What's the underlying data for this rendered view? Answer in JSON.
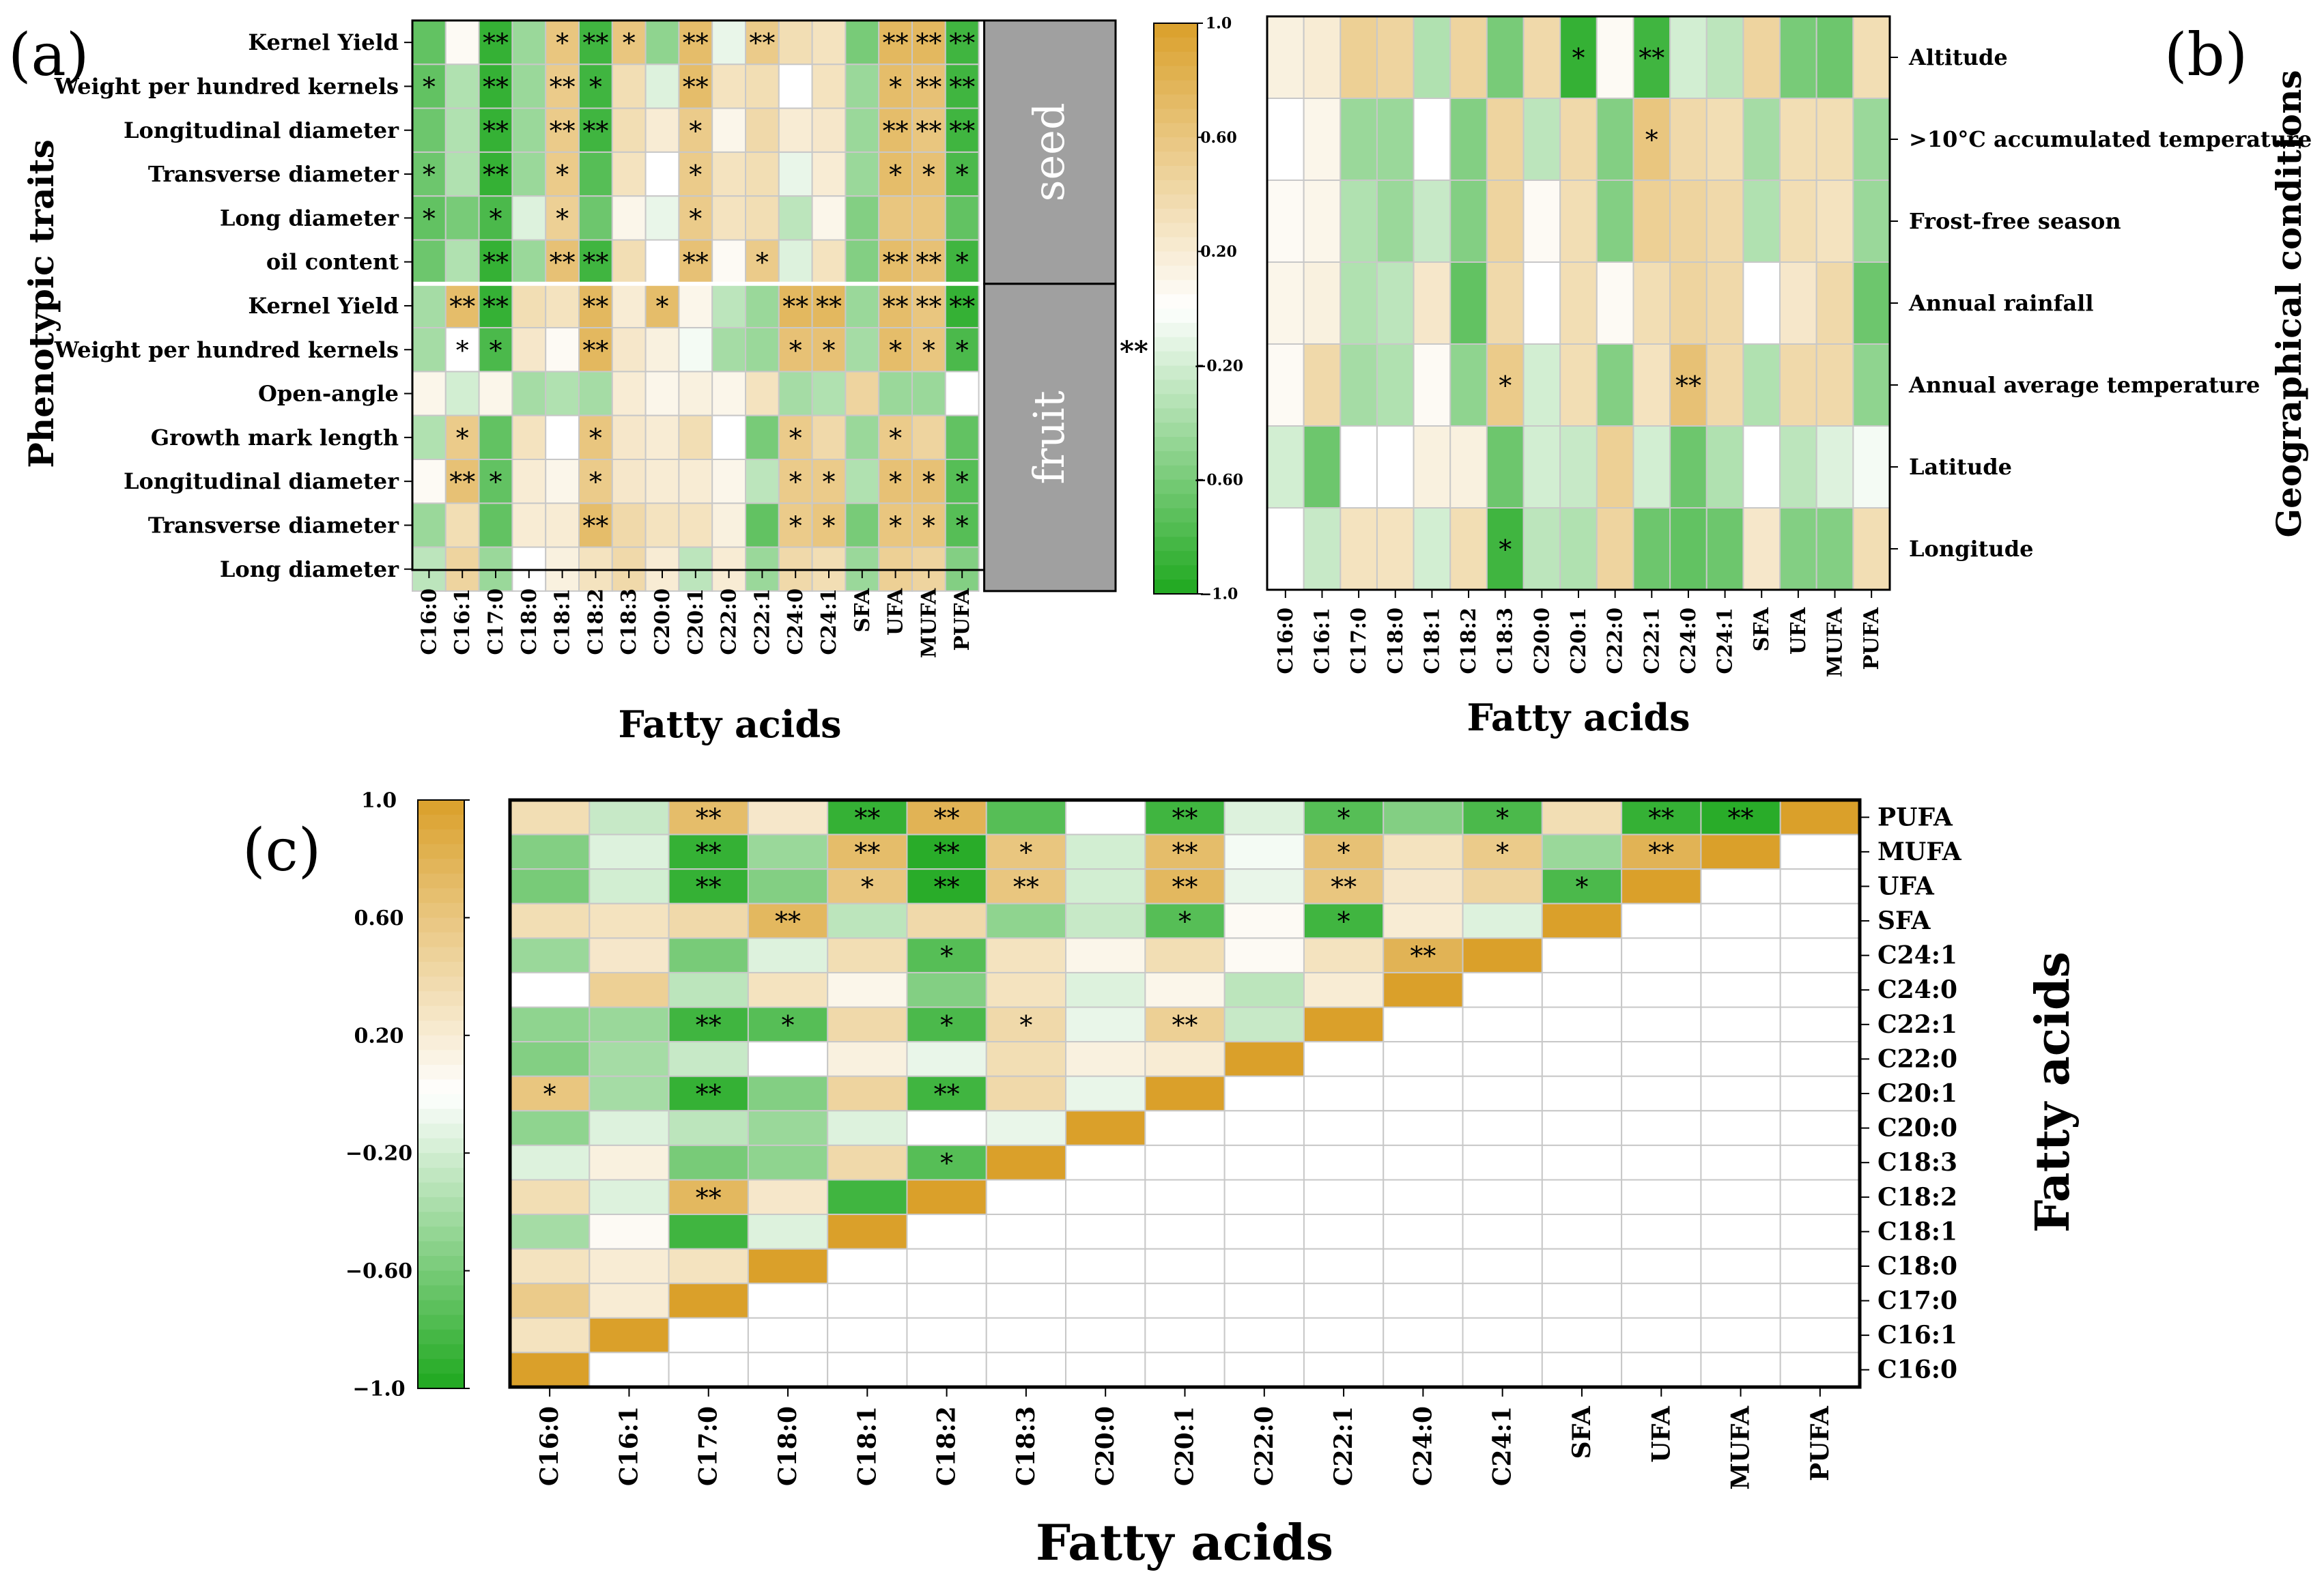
{
  "panels": {
    "a": {
      "label": "(a)"
    },
    "b": {
      "label": "(b)"
    },
    "c": {
      "label": "(c)"
    }
  },
  "colorbar": {
    "ticks": [
      "1.0",
      "0.60",
      "0.20",
      "−0.20",
      "−0.60",
      "−1.0"
    ],
    "tick_values": [
      1.0,
      0.6,
      0.2,
      -0.2,
      -0.6,
      -1.0
    ]
  },
  "significance_legend": "**",
  "colors": {
    "positive": "#daa02a",
    "neutral": "#ffffff",
    "negative": "#1ea81e",
    "cell_border": "#c8c8c8",
    "group_tag": "#a0a0a0"
  },
  "chart_data": [
    {
      "panel": "a",
      "type": "heatmap",
      "xlabel": "Fatty acids",
      "ylabel": "Phenotypic traits",
      "columns": [
        "C16:0",
        "C16:1",
        "C17:0",
        "C18:0",
        "C18:1",
        "C18:2",
        "C18:3",
        "C20:0",
        "C20:1",
        "C22:0",
        "C22:1",
        "C24:0",
        "C24:1",
        "SFA",
        "UFA",
        "MUFA",
        "PUFA"
      ],
      "groups": [
        "seed",
        "fruit"
      ],
      "rows": [
        "Kernel Yield",
        "Weight per hundred kernels",
        "Longitudinal diameter",
        "Transverse diameter",
        "Long diameter",
        "oil content",
        "Kernel Yield",
        "Weight per hundred kernels",
        "Open-angle",
        "Growth mark length",
        "Longitudinal diameter",
        "Transverse diameter",
        "Long diameter"
      ],
      "values": [
        [
          -0.7,
          0.05,
          -0.9,
          -0.45,
          0.6,
          -0.85,
          0.6,
          -0.5,
          0.7,
          -0.1,
          0.55,
          0.35,
          0.3,
          -0.6,
          0.75,
          0.75,
          -0.85
        ],
        [
          -0.7,
          -0.35,
          -0.9,
          -0.45,
          0.55,
          -0.85,
          0.35,
          -0.15,
          0.7,
          0.3,
          0.35,
          0.0,
          0.3,
          -0.45,
          0.7,
          0.65,
          -0.85
        ],
        [
          -0.65,
          -0.35,
          -0.9,
          -0.45,
          0.55,
          -0.85,
          0.35,
          0.2,
          0.55,
          0.1,
          0.4,
          0.2,
          0.25,
          -0.45,
          0.7,
          0.6,
          -0.85
        ],
        [
          -0.65,
          -0.35,
          -0.9,
          -0.45,
          0.55,
          -0.75,
          0.3,
          0.0,
          0.55,
          0.3,
          0.35,
          -0.1,
          0.2,
          -0.45,
          0.7,
          0.65,
          -0.8
        ],
        [
          -0.7,
          -0.6,
          -0.8,
          -0.15,
          0.5,
          -0.65,
          0.1,
          -0.1,
          0.55,
          0.3,
          0.35,
          -0.3,
          0.1,
          -0.55,
          0.6,
          0.6,
          -0.7
        ],
        [
          -0.65,
          -0.35,
          -0.9,
          -0.45,
          0.65,
          -0.85,
          0.35,
          0.0,
          0.65,
          0.05,
          0.55,
          -0.15,
          0.3,
          -0.55,
          0.7,
          0.65,
          -0.85
        ],
        [
          -0.4,
          0.7,
          -0.9,
          0.35,
          0.3,
          0.75,
          0.2,
          0.7,
          0.1,
          -0.3,
          -0.45,
          0.75,
          0.75,
          -0.45,
          0.7,
          0.6,
          -0.9
        ],
        [
          -0.4,
          0.0,
          -0.8,
          0.25,
          0.05,
          0.75,
          0.25,
          0.15,
          -0.05,
          -0.4,
          -0.45,
          0.65,
          0.65,
          -0.4,
          0.7,
          0.6,
          -0.8
        ],
        [
          0.1,
          -0.2,
          0.1,
          -0.4,
          -0.35,
          -0.4,
          0.2,
          0.1,
          0.15,
          0.1,
          0.3,
          -0.4,
          -0.35,
          0.45,
          -0.45,
          -0.45,
          0.0
        ],
        [
          -0.35,
          0.55,
          -0.7,
          0.3,
          0.0,
          0.6,
          0.25,
          0.2,
          0.35,
          0.0,
          -0.6,
          0.55,
          0.4,
          -0.45,
          0.55,
          0.45,
          -0.7
        ],
        [
          0.05,
          0.65,
          -0.7,
          0.2,
          0.1,
          0.55,
          0.25,
          0.2,
          0.2,
          0.1,
          -0.3,
          0.55,
          0.55,
          -0.35,
          0.65,
          0.65,
          -0.75
        ],
        [
          -0.45,
          0.35,
          -0.7,
          0.2,
          0.2,
          0.7,
          0.4,
          0.3,
          0.3,
          0.15,
          -0.7,
          0.55,
          0.6,
          -0.6,
          0.6,
          0.6,
          -0.75
        ],
        [
          -0.3,
          0.45,
          -0.45,
          0.0,
          0.15,
          0.3,
          0.4,
          0.2,
          -0.3,
          0.2,
          -0.45,
          0.4,
          0.35,
          -0.45,
          0.5,
          0.45,
          -0.55
        ]
      ],
      "signif": [
        [
          "",
          "",
          "**",
          "",
          "*",
          "**",
          "*",
          "",
          "**",
          "",
          "**",
          "",
          "",
          "",
          "**",
          "**",
          "**"
        ],
        [
          "*",
          "",
          "**",
          "",
          "**",
          "*",
          "",
          "",
          "**",
          "",
          "",
          "",
          "",
          "",
          "*",
          "**",
          "**"
        ],
        [
          "",
          "",
          "**",
          "",
          "**",
          "**",
          "",
          "",
          "*",
          "",
          "",
          "",
          "",
          "",
          "**",
          "**",
          "**"
        ],
        [
          "*",
          "",
          "**",
          "",
          "*",
          "",
          "",
          "",
          "*",
          "",
          "",
          "",
          "",
          "",
          "*",
          "*",
          "*"
        ],
        [
          "*",
          "",
          "*",
          "",
          "*",
          "",
          "",
          "",
          "*",
          "",
          "",
          "",
          "",
          "",
          "",
          "",
          ""
        ],
        [
          "",
          "",
          "**",
          "",
          "**",
          "**",
          "",
          "",
          "**",
          "",
          "*",
          "",
          "",
          "",
          "**",
          "**",
          "*"
        ],
        [
          "",
          "**",
          "**",
          "",
          "",
          "**",
          "",
          "*",
          "",
          "",
          "",
          "**",
          "**",
          "",
          "**",
          "**",
          "**"
        ],
        [
          "",
          "*",
          "*",
          "",
          "",
          "**",
          "",
          "",
          "",
          "",
          "",
          "*",
          "*",
          "",
          "*",
          "*",
          "*"
        ],
        [
          "",
          "",
          "",
          "",
          "",
          "",
          "",
          "",
          "",
          "",
          "",
          "",
          "",
          "",
          "",
          "",
          ""
        ],
        [
          "",
          "*",
          "",
          "",
          "",
          "*",
          "",
          "",
          "",
          "",
          "",
          "*",
          "",
          "",
          "*",
          "",
          ""
        ],
        [
          "",
          "**",
          "*",
          "",
          "",
          "*",
          "",
          "",
          "",
          "",
          "",
          "*",
          "*",
          "",
          "*",
          "*",
          "*"
        ],
        [
          "",
          "",
          "",
          "",
          "",
          "**",
          "",
          "",
          "",
          "",
          "",
          "*",
          "*",
          "",
          "*",
          "*",
          "*"
        ],
        [
          "",
          "",
          "",
          "",
          "",
          "",
          "",
          "",
          "",
          "",
          "",
          "",
          "",
          "",
          "",
          "",
          ""
        ]
      ],
      "vmin": -1.0,
      "vmax": 1.0
    },
    {
      "panel": "b",
      "type": "heatmap",
      "xlabel": "Fatty acids",
      "ylabel": "Geographical conditions",
      "columns": [
        "C16:0",
        "C16:1",
        "C17:0",
        "C18:0",
        "C18:1",
        "C18:2",
        "C18:3",
        "C20:0",
        "C20:1",
        "C22:0",
        "C22:1",
        "C24:0",
        "C24:1",
        "SFA",
        "UFA",
        "MUFA",
        "PUFA"
      ],
      "rows": [
        "Altitude",
        ">10°C accumulated temperature",
        "Frost-free season",
        "Annual rainfall",
        "Annual average temperature",
        "Latitude",
        "Longitude"
      ],
      "values": [
        [
          0.15,
          0.2,
          0.5,
          0.45,
          -0.35,
          0.45,
          -0.6,
          0.4,
          -0.9,
          0.05,
          -0.85,
          -0.2,
          -0.3,
          0.45,
          -0.6,
          -0.65,
          0.35
        ],
        [
          0.0,
          0.1,
          -0.45,
          -0.45,
          0.0,
          -0.55,
          0.45,
          -0.3,
          0.4,
          -0.55,
          0.6,
          0.4,
          0.35,
          -0.4,
          0.35,
          0.35,
          -0.45
        ],
        [
          0.05,
          0.1,
          -0.35,
          -0.45,
          -0.25,
          -0.55,
          0.45,
          0.05,
          0.35,
          -0.55,
          0.5,
          0.45,
          0.4,
          -0.35,
          0.35,
          0.3,
          -0.45
        ],
        [
          0.1,
          0.15,
          -0.35,
          -0.3,
          0.25,
          -0.7,
          0.4,
          0.0,
          0.35,
          0.05,
          0.35,
          0.45,
          0.4,
          0.0,
          0.25,
          0.4,
          -0.65
        ],
        [
          0.05,
          0.4,
          -0.4,
          -0.35,
          0.05,
          -0.5,
          0.55,
          -0.2,
          0.35,
          -0.55,
          0.3,
          0.65,
          0.4,
          -0.35,
          0.4,
          0.4,
          -0.5
        ],
        [
          -0.2,
          -0.65,
          0.0,
          0.0,
          0.15,
          0.15,
          -0.65,
          -0.2,
          -0.25,
          0.5,
          -0.2,
          -0.65,
          -0.35,
          0.0,
          -0.3,
          -0.15,
          -0.05
        ],
        [
          0.0,
          -0.25,
          0.3,
          0.3,
          -0.2,
          0.35,
          -0.85,
          -0.3,
          -0.35,
          0.45,
          -0.65,
          -0.7,
          -0.65,
          0.25,
          -0.55,
          -0.55,
          0.35
        ]
      ],
      "signif": [
        [
          "",
          "",
          "",
          "",
          "",
          "",
          "",
          "",
          "*",
          "",
          "**",
          "",
          "",
          "",
          "",
          "",
          ""
        ],
        [
          "",
          "",
          "",
          "",
          "",
          "",
          "",
          "",
          "",
          "",
          "*",
          "",
          "",
          "",
          "",
          "",
          ""
        ],
        [
          "",
          "",
          "",
          "",
          "",
          "",
          "",
          "",
          "",
          "",
          "",
          "",
          "",
          "",
          "",
          "",
          ""
        ],
        [
          "",
          "",
          "",
          "",
          "",
          "",
          "",
          "",
          "",
          "",
          "",
          "",
          "",
          "",
          "",
          "",
          ""
        ],
        [
          "",
          "",
          "",
          "",
          "",
          "",
          "*",
          "",
          "",
          "",
          "",
          "**",
          "",
          "",
          "",
          "",
          ""
        ],
        [
          "",
          "",
          "",
          "",
          "",
          "",
          "",
          "",
          "",
          "",
          "",
          "",
          "",
          "",
          "",
          "",
          ""
        ],
        [
          "",
          "",
          "",
          "",
          "",
          "",
          "*",
          "",
          "",
          "",
          "",
          "",
          "",
          "",
          "",
          "",
          ""
        ]
      ],
      "vmin": -1.0,
      "vmax": 1.0
    },
    {
      "panel": "c",
      "type": "heatmap",
      "xlabel": "Fatty acids",
      "ylabel": "Fatty acids",
      "columns": [
        "C16:0",
        "C16:1",
        "C17:0",
        "C18:0",
        "C18:1",
        "C18:2",
        "C18:3",
        "C20:0",
        "C20:1",
        "C22:0",
        "C22:1",
        "C24:0",
        "C24:1",
        "SFA",
        "UFA",
        "MUFA",
        "PUFA"
      ],
      "rows_top_to_bottom": [
        "PUFA",
        "MUFA",
        "UFA",
        "SFA",
        "C24:1",
        "C24:0",
        "C22:1",
        "C22:0",
        "C20:1",
        "C20:0",
        "C18:3",
        "C18:2",
        "C18:1",
        "C18:0",
        "C17:0",
        "C16:1",
        "C16:0"
      ],
      "lower_triangle_rows": {
        "C16:1": [
          0.3
        ],
        "C17:0": [
          0.55,
          0.2
        ],
        "C18:0": [
          0.3,
          0.2,
          0.3
        ],
        "C18:1": [
          -0.4,
          0.05,
          -0.85,
          -0.15
        ],
        "C18:2": [
          0.35,
          -0.15,
          0.75,
          0.25,
          -0.85
        ],
        "C18:3": [
          -0.15,
          0.15,
          -0.6,
          -0.5,
          0.4,
          -0.75
        ],
        "C20:0": [
          -0.5,
          -0.15,
          -0.3,
          -0.45,
          -0.15,
          0.0,
          -0.1
        ],
        "C20:1": [
          0.6,
          -0.4,
          -0.9,
          -0.55,
          0.45,
          -0.85,
          0.4,
          -0.1
        ],
        "C22:0": [
          -0.55,
          -0.4,
          -0.25,
          0.0,
          0.15,
          -0.1,
          0.35,
          0.15,
          0.2
        ],
        "C22:1": [
          -0.5,
          -0.45,
          -0.85,
          -0.75,
          0.4,
          -0.8,
          0.4,
          -0.1,
          0.5,
          -0.25
        ],
        "C24:0": [
          0.0,
          0.5,
          -0.3,
          0.3,
          0.1,
          -0.55,
          0.3,
          -0.15,
          0.1,
          -0.3,
          0.2
        ],
        "C24:1": [
          -0.45,
          0.25,
          -0.6,
          -0.15,
          0.35,
          -0.75,
          0.3,
          0.1,
          0.35,
          0.05,
          0.3,
          0.8
        ],
        "SFA": [
          0.35,
          0.3,
          0.4,
          0.75,
          -0.3,
          0.4,
          -0.5,
          -0.25,
          -0.75,
          0.05,
          -0.85,
          0.2,
          -0.15
        ],
        "UFA": [
          -0.6,
          -0.2,
          -0.9,
          -0.55,
          0.6,
          -0.95,
          0.6,
          -0.2,
          0.75,
          -0.1,
          0.6,
          0.25,
          0.45,
          -0.8
        ],
        "MUFA": [
          -0.55,
          -0.15,
          -0.9,
          -0.45,
          0.7,
          -0.95,
          0.6,
          -0.2,
          0.7,
          -0.05,
          0.65,
          0.3,
          0.55,
          -0.45,
          0.8
        ],
        "PUFA": [
          0.35,
          -0.25,
          0.7,
          0.25,
          -0.9,
          0.8,
          -0.75,
          0.0,
          -0.85,
          -0.15,
          -0.75,
          -0.55,
          -0.8,
          0.35,
          -0.9,
          -0.95
        ]
      },
      "diagonal": 1.0,
      "signif": {
        "C17:0": [
          "",
          "",
          "*"
        ],
        "C18:1": [
          "",
          "",
          "",
          "",
          "*"
        ],
        "C18:2": [
          "",
          "",
          "**",
          "",
          "",
          "",
          "*"
        ],
        "C18:3": [
          "",
          "",
          "",
          "",
          "",
          "*"
        ],
        "C20:1": [
          "*",
          "",
          "**",
          "",
          "",
          "**"
        ],
        "C22:1": [
          "",
          "",
          "**",
          "*",
          "",
          "*",
          "*",
          "",
          "**"
        ],
        "C24:1": [
          "",
          "",
          "",
          "",
          "",
          "*",
          "",
          "",
          "",
          "",
          "",
          "**"
        ],
        "SFA": [
          "",
          "",
          "",
          "**",
          "",
          "",
          "",
          "",
          "*",
          "",
          "*",
          "",
          "",
          "*"
        ],
        "UFA": [
          "",
          "",
          "**",
          "",
          "*",
          "**",
          "**",
          "",
          "**",
          "",
          "**",
          "",
          "",
          "*",
          "**"
        ],
        "MUFA": [
          "",
          "",
          "**",
          "",
          "**",
          "**",
          "*",
          "",
          "**",
          "",
          "*",
          "",
          "*",
          "",
          "**",
          "**"
        ],
        "PUFA": [
          "",
          "",
          "**",
          "",
          "**",
          "**",
          "",
          "",
          "**",
          "",
          "*",
          "",
          "*",
          "",
          "**",
          "**"
        ]
      },
      "vmin": -1.0,
      "vmax": 1.0
    }
  ]
}
